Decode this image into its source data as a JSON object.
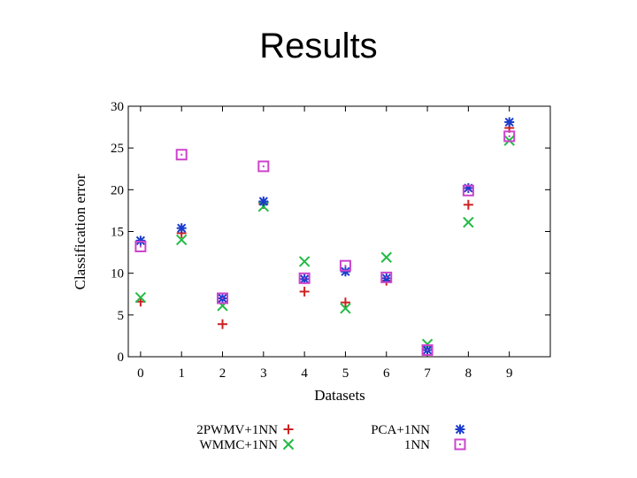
{
  "slide": {
    "title": "Results"
  },
  "chart_data": {
    "type": "scatter",
    "xlabel": "Datasets",
    "ylabel": "Classification error",
    "xlim": [
      -0.3,
      10
    ],
    "ylim": [
      0,
      30
    ],
    "x_ticks": [
      0,
      1,
      2,
      3,
      4,
      5,
      6,
      7,
      8,
      9
    ],
    "y_ticks": [
      0,
      5,
      10,
      15,
      20,
      25,
      30
    ],
    "grid": false,
    "legend_position": "bottom",
    "series": [
      {
        "name": "2PWMV+1NN",
        "marker": "plus",
        "color": "#cc2222",
        "x": [
          0,
          1,
          2,
          3,
          4,
          5,
          6,
          7,
          8,
          9
        ],
        "y": [
          6.6,
          14.8,
          3.9,
          18.3,
          7.8,
          6.5,
          9.1,
          0.8,
          18.2,
          27.4
        ]
      },
      {
        "name": "WMMC+1NN",
        "marker": "x",
        "color": "#22bb44",
        "x": [
          0,
          1,
          2,
          3,
          4,
          5,
          6,
          7,
          8,
          9
        ],
        "y": [
          7.1,
          14.0,
          6.1,
          18.0,
          11.4,
          5.8,
          11.9,
          1.5,
          16.1,
          25.9
        ]
      },
      {
        "name": "PCA+1NN",
        "marker": "asterisk",
        "color": "#1a3ccc",
        "x": [
          0,
          1,
          2,
          3,
          4,
          5,
          6,
          7,
          8,
          9
        ],
        "y": [
          13.9,
          15.4,
          7.0,
          18.6,
          9.3,
          10.2,
          9.4,
          0.8,
          20.2,
          28.1
        ]
      },
      {
        "name": "1NN",
        "marker": "square",
        "color": "#cc44cc",
        "x": [
          0,
          1,
          2,
          3,
          4,
          5,
          6,
          7,
          8,
          9
        ],
        "y": [
          13.2,
          24.2,
          7.0,
          22.8,
          9.4,
          10.9,
          9.5,
          0.8,
          19.9,
          26.4
        ]
      }
    ]
  }
}
